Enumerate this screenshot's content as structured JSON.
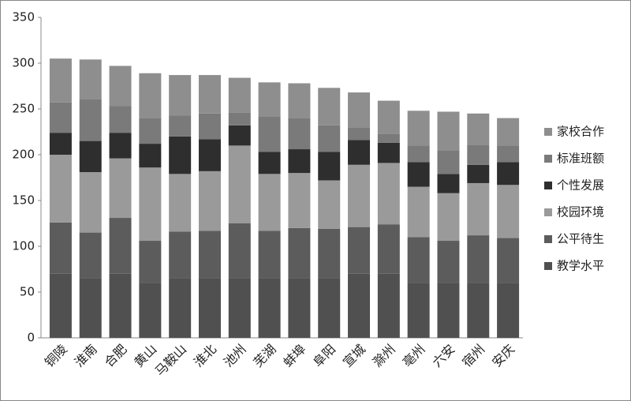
{
  "chart_data": {
    "type": "stacked_bar",
    "categories": [
      "铜陵",
      "淮南",
      "合肥",
      "黄山",
      "马鞍山",
      "淮北",
      "池州",
      "芜湖",
      "蚌埠",
      "阜阳",
      "宣城",
      "滁州",
      "亳州",
      "六安",
      "宿州",
      "安庆"
    ],
    "series": [
      {
        "name": "教学水平",
        "color": "#505050",
        "values": [
          70,
          65,
          70,
          60,
          65,
          65,
          65,
          65,
          65,
          65,
          70,
          70,
          60,
          60,
          60,
          60
        ]
      },
      {
        "name": "公平待生",
        "color": "#5c5c5c",
        "values": [
          56,
          50,
          61,
          46,
          51,
          52,
          60,
          52,
          55,
          54,
          51,
          54,
          50,
          46,
          52,
          49
        ]
      },
      {
        "name": "校园环境",
        "color": "#9a9a9a",
        "values": [
          74,
          66,
          65,
          80,
          63,
          65,
          85,
          62,
          60,
          53,
          68,
          67,
          55,
          52,
          57,
          58
        ]
      },
      {
        "name": "个性发展",
        "color": "#2e2e2e",
        "values": [
          24,
          34,
          28,
          26,
          41,
          35,
          22,
          24,
          26,
          31,
          27,
          22,
          27,
          21,
          20,
          25
        ]
      },
      {
        "name": "标准班额",
        "color": "#7a7a7a",
        "values": [
          33,
          46,
          29,
          28,
          23,
          28,
          14,
          39,
          34,
          29,
          14,
          10,
          18,
          26,
          22,
          18
        ]
      },
      {
        "name": "家校合作",
        "color": "#8e8e8e",
        "values": [
          48,
          43,
          44,
          49,
          44,
          42,
          38,
          37,
          38,
          41,
          38,
          36,
          38,
          42,
          34,
          30
        ]
      }
    ],
    "ylim": [
      0,
      350
    ],
    "yticks": [
      0,
      50,
      100,
      150,
      200,
      250,
      300,
      350
    ],
    "legend": "right"
  }
}
